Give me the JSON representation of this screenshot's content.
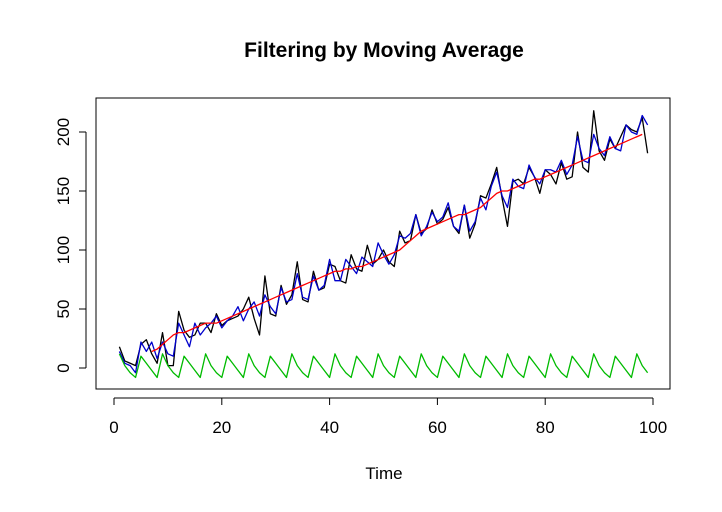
{
  "chart_data": {
    "type": "line",
    "title": "Filtering by Moving Average",
    "xlabel": "Time",
    "ylabel": "",
    "xlim": [
      1,
      99
    ],
    "ylim": [
      -10,
      220
    ],
    "x_ticks": [
      0,
      20,
      40,
      60,
      80,
      100
    ],
    "y_ticks": [
      0,
      50,
      100,
      150,
      200
    ],
    "x_tick_labels": [
      "0",
      "20",
      "40",
      "60",
      "80",
      "100"
    ],
    "y_tick_labels": [
      "0",
      "50",
      "100",
      "150",
      "200"
    ],
    "grid": false,
    "legend": "none",
    "x_start": 1,
    "series": [
      {
        "color": "#000000",
        "values": [
          18,
          6,
          4,
          2,
          20,
          24,
          12,
          4,
          30,
          2,
          2,
          48,
          32,
          26,
          28,
          38,
          38,
          30,
          46,
          36,
          40,
          42,
          44,
          50,
          60,
          42,
          28,
          78,
          46,
          44,
          70,
          54,
          62,
          90,
          58,
          56,
          82,
          66,
          68,
          88,
          86,
          74,
          72,
          96,
          84,
          82,
          104,
          88,
          92,
          100,
          90,
          86,
          116,
          106,
          108,
          130,
          114,
          118,
          134,
          122,
          126,
          136,
          120,
          114,
          138,
          110,
          122,
          146,
          144,
          156,
          170,
          144,
          120,
          158,
          160,
          156,
          170,
          162,
          148,
          168,
          164,
          156,
          174,
          160,
          162,
          200,
          170,
          166,
          218,
          184,
          176,
          194,
          186,
          196,
          206,
          202,
          200,
          212,
          182
        ]
      },
      {
        "color": "#0000cc",
        "values": [
          14,
          4,
          2,
          -4,
          22,
          14,
          22,
          8,
          22,
          12,
          10,
          38,
          28,
          18,
          38,
          28,
          34,
          38,
          44,
          34,
          40,
          44,
          52,
          40,
          50,
          56,
          44,
          62,
          52,
          46,
          68,
          56,
          58,
          80,
          60,
          58,
          78,
          66,
          70,
          92,
          74,
          74,
          92,
          86,
          80,
          94,
          90,
          86,
          106,
          96,
          88,
          96,
          112,
          110,
          114,
          130,
          112,
          120,
          132,
          124,
          128,
          140,
          120,
          116,
          138,
          116,
          124,
          144,
          134,
          154,
          166,
          146,
          136,
          160,
          154,
          152,
          172,
          162,
          156,
          168,
          168,
          166,
          176,
          164,
          172,
          196,
          176,
          174,
          198,
          186,
          180,
          196,
          186,
          184,
          206,
          200,
          198,
          214,
          206
        ]
      },
      {
        "color": "#ff0000",
        "values": [
          null,
          null,
          null,
          null,
          null,
          null,
          14,
          16,
          20,
          24,
          28,
          30,
          30,
          32,
          34,
          36,
          38,
          38,
          38,
          40,
          42,
          44,
          46,
          48,
          50,
          52,
          54,
          56,
          58,
          60,
          62,
          64,
          66,
          68,
          70,
          72,
          74,
          76,
          78,
          80,
          82,
          82,
          84,
          84,
          86,
          86,
          88,
          90,
          92,
          94,
          96,
          98,
          100,
          104,
          108,
          112,
          116,
          118,
          120,
          122,
          124,
          126,
          128,
          130,
          130,
          132,
          134,
          136,
          140,
          144,
          148,
          150,
          150,
          152,
          154,
          156,
          158,
          160,
          160,
          162,
          164,
          166,
          168,
          170,
          172,
          174,
          176,
          178,
          180,
          182,
          184,
          186,
          188,
          190,
          192,
          194,
          196,
          198,
          null
        ]
      },
      {
        "color": "#00bb00",
        "values": [
          12,
          2,
          -4,
          -8,
          10,
          4,
          -2,
          -8,
          12,
          2,
          -4,
          -8,
          10,
          4,
          -2,
          -8,
          12,
          2,
          -4,
          -8,
          10,
          4,
          -2,
          -8,
          12,
          2,
          -4,
          -8,
          10,
          4,
          -2,
          -8,
          12,
          2,
          -4,
          -8,
          10,
          4,
          -2,
          -8,
          12,
          2,
          -4,
          -8,
          10,
          4,
          -2,
          -8,
          12,
          2,
          -4,
          -8,
          10,
          4,
          -2,
          -8,
          12,
          2,
          -4,
          -8,
          10,
          4,
          -2,
          -8,
          12,
          2,
          -4,
          -8,
          10,
          4,
          -2,
          -8,
          12,
          2,
          -4,
          -8,
          10,
          4,
          -2,
          -8,
          12,
          2,
          -4,
          -8,
          10,
          4,
          -2,
          -8,
          12,
          2,
          -4,
          -8,
          10,
          4,
          -2,
          -8,
          12,
          2,
          -4
        ]
      }
    ]
  }
}
